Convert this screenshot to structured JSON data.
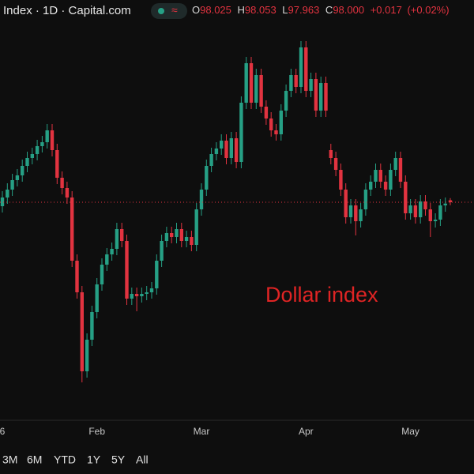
{
  "header": {
    "symbol": "Index · 1D · Capital.com",
    "o_label": "O",
    "open": "98.025",
    "h_label": "H",
    "high": "98.053",
    "l_label": "L",
    "low": "97.963",
    "c_label": "C",
    "close": "98.000",
    "change": "+0.017",
    "change_pct": "(+0.02%)"
  },
  "ranges": [
    "3M",
    "6M",
    "YTD",
    "1Y",
    "5Y",
    "All"
  ],
  "chart_data": {
    "type": "candlestick",
    "annotation": "Dollar index",
    "up_color": "#26a085",
    "down_color": "#e23340",
    "ylim": [
      95.25,
      100.25
    ],
    "categories": [
      "6",
      null,
      null,
      null,
      null,
      null,
      null,
      null,
      null,
      null,
      null,
      null,
      null,
      null,
      null,
      null,
      null,
      null,
      null,
      "Feb",
      null,
      null,
      null,
      null,
      null,
      null,
      null,
      null,
      null,
      null,
      null,
      null,
      null,
      null,
      null,
      null,
      null,
      null,
      null,
      null,
      "Mar",
      null,
      null,
      null,
      null,
      null,
      null,
      null,
      null,
      null,
      null,
      null,
      null,
      null,
      null,
      null,
      null,
      null,
      null,
      null,
      null,
      "Apr",
      null,
      null,
      null,
      null,
      null,
      null,
      null,
      null,
      null,
      null,
      null,
      null,
      null,
      null,
      null,
      null,
      null,
      null,
      null,
      null,
      "May",
      null,
      null,
      null,
      null,
      null,
      null,
      null,
      null
    ],
    "open": [
      97.95,
      98.06,
      98.16,
      98.28,
      98.34,
      98.46,
      98.56,
      98.61,
      98.71,
      98.76,
      98.91,
      98.66,
      98.31,
      98.18,
      98.06,
      97.26,
      96.86,
      95.86,
      96.26,
      96.61,
      96.96,
      97.21,
      97.34,
      97.41,
      97.66,
      97.51,
      96.78,
      96.84,
      96.81,
      96.84,
      96.86,
      96.91,
      97.26,
      97.51,
      97.61,
      97.56,
      97.66,
      97.51,
      97.56,
      97.46,
      97.91,
      98.16,
      98.46,
      98.61,
      98.68,
      98.78,
      98.56,
      98.81,
      98.51,
      99.26,
      99.76,
      99.26,
      99.61,
      99.21,
      99.06,
      98.91,
      98.86,
      99.16,
      99.41,
      99.61,
      99.46,
      99.96,
      99.41,
      99.56,
      99.16,
      99.51,
      98.66,
      98.56,
      98.41,
      98.16,
      97.81,
      97.96,
      97.76,
      97.91,
      98.16,
      98.26,
      98.41,
      98.26,
      98.16,
      98.41,
      98.56,
      98.26,
      97.86,
      97.96,
      97.81,
      98.01,
      97.91,
      97.76,
      97.78,
      97.96,
      98.025
    ],
    "high": [
      98.14,
      98.24,
      98.36,
      98.42,
      98.54,
      98.64,
      98.69,
      98.79,
      98.84,
      98.99,
      98.99,
      98.74,
      98.39,
      98.26,
      98.14,
      97.34,
      96.94,
      96.34,
      96.69,
      97.04,
      97.29,
      97.42,
      97.49,
      97.74,
      97.74,
      97.59,
      96.92,
      96.92,
      96.92,
      96.94,
      96.99,
      97.34,
      97.59,
      97.69,
      97.69,
      97.74,
      97.74,
      97.64,
      97.64,
      97.99,
      98.24,
      98.54,
      98.69,
      98.76,
      98.86,
      98.86,
      98.89,
      98.89,
      99.34,
      99.84,
      99.84,
      99.69,
      99.69,
      99.29,
      99.14,
      98.99,
      99.24,
      99.49,
      99.69,
      99.69,
      100.04,
      100.04,
      99.64,
      99.64,
      99.59,
      99.59,
      98.74,
      98.64,
      98.49,
      98.24,
      98.04,
      98.04,
      97.99,
      98.24,
      98.34,
      98.49,
      98.49,
      98.34,
      98.49,
      98.64,
      98.64,
      98.34,
      98.04,
      98.04,
      98.09,
      98.09,
      97.99,
      97.86,
      98.04,
      98.06,
      98.053
    ],
    "low": [
      97.87,
      97.98,
      98.08,
      98.2,
      98.26,
      98.38,
      98.48,
      98.53,
      98.63,
      98.68,
      98.58,
      98.23,
      98.1,
      97.98,
      97.18,
      96.78,
      95.72,
      95.78,
      96.18,
      96.53,
      96.88,
      97.13,
      97.26,
      97.33,
      97.43,
      96.7,
      96.7,
      96.62,
      96.73,
      96.76,
      96.78,
      96.83,
      97.18,
      97.43,
      97.48,
      97.48,
      97.43,
      97.43,
      97.38,
      97.38,
      97.83,
      98.08,
      98.38,
      98.53,
      98.6,
      98.48,
      98.48,
      98.43,
      98.43,
      99.18,
      99.18,
      99.18,
      99.13,
      98.98,
      98.83,
      98.78,
      98.78,
      99.08,
      99.33,
      99.38,
      99.38,
      99.33,
      99.33,
      99.08,
      99.08,
      99.08,
      98.48,
      98.33,
      98.08,
      97.73,
      97.73,
      97.58,
      97.68,
      97.83,
      98.08,
      98.18,
      98.18,
      98.08,
      98.08,
      98.33,
      98.18,
      97.78,
      97.78,
      97.73,
      97.73,
      97.83,
      97.56,
      97.68,
      97.7,
      97.88,
      97.963
    ],
    "close": [
      98.06,
      98.16,
      98.28,
      98.34,
      98.46,
      98.56,
      98.61,
      98.71,
      98.76,
      98.91,
      98.66,
      98.31,
      98.18,
      98.06,
      97.26,
      96.86,
      95.86,
      96.26,
      96.61,
      96.96,
      97.21,
      97.34,
      97.41,
      97.66,
      97.51,
      96.78,
      96.84,
      96.81,
      96.84,
      96.86,
      96.91,
      97.26,
      97.51,
      97.61,
      97.56,
      97.66,
      97.51,
      97.56,
      97.46,
      97.91,
      98.16,
      98.46,
      98.61,
      98.68,
      98.78,
      98.56,
      98.81,
      98.51,
      99.26,
      99.76,
      99.26,
      99.61,
      99.21,
      99.06,
      98.91,
      98.86,
      99.16,
      99.41,
      99.61,
      99.46,
      99.96,
      99.41,
      99.56,
      99.16,
      99.51,
      99.16,
      98.56,
      98.41,
      98.16,
      97.81,
      97.96,
      97.76,
      97.91,
      98.16,
      98.26,
      98.41,
      98.26,
      98.16,
      98.41,
      98.56,
      98.26,
      97.86,
      97.96,
      97.81,
      98.01,
      97.91,
      97.76,
      97.78,
      97.96,
      97.983,
      98.0
    ]
  }
}
